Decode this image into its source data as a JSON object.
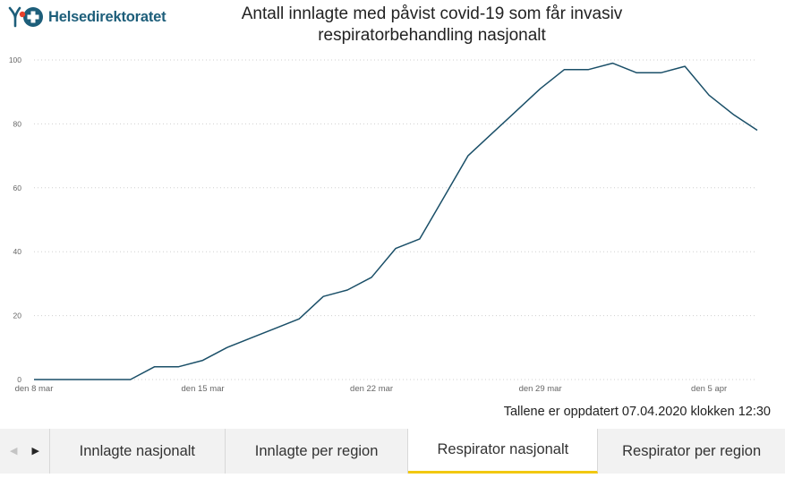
{
  "header": {
    "logo_text": "Helsedirektoratet",
    "title_line1": "Antall innlagte med påvist covid-19 som får invasiv",
    "title_line2": "respiratorbehandling nasjonalt"
  },
  "chart_data": {
    "type": "line",
    "title": "Antall innlagte med påvist covid-19 som får invasiv respiratorbehandling nasjonalt",
    "xlabel": "",
    "ylabel": "",
    "x": [
      "2020-03-08",
      "2020-03-09",
      "2020-03-10",
      "2020-03-11",
      "2020-03-12",
      "2020-03-13",
      "2020-03-14",
      "2020-03-15",
      "2020-03-16",
      "2020-03-17",
      "2020-03-18",
      "2020-03-19",
      "2020-03-20",
      "2020-03-21",
      "2020-03-22",
      "2020-03-23",
      "2020-03-24",
      "2020-03-25",
      "2020-03-26",
      "2020-03-27",
      "2020-03-28",
      "2020-03-29",
      "2020-03-30",
      "2020-03-31",
      "2020-04-01",
      "2020-04-02",
      "2020-04-03",
      "2020-04-04",
      "2020-04-05",
      "2020-04-06",
      "2020-04-07"
    ],
    "series": [
      {
        "values": [
          0,
          0,
          0,
          0,
          0,
          4,
          4,
          6,
          10,
          13,
          16,
          19,
          26,
          28,
          32,
          41,
          44,
          57,
          70,
          77,
          84,
          91,
          97,
          97,
          99,
          96,
          96,
          98,
          89,
          83,
          78
        ]
      }
    ],
    "ylim": [
      0,
      100
    ],
    "y_ticks": [
      0,
      20,
      40,
      60,
      80,
      100
    ],
    "x_ticks": [
      {
        "label": "den 8 mar",
        "index": 0
      },
      {
        "label": "den 15 mar",
        "index": 7
      },
      {
        "label": "den 22 mar",
        "index": 14
      },
      {
        "label": "den 29 mar",
        "index": 21
      },
      {
        "label": "den 5 apr",
        "index": 28
      }
    ],
    "grid": "horizontal dotted",
    "line_color": "#1a4f68"
  },
  "footnote": "Tallene er oppdatert 07.04.2020 klokken 12:30",
  "tabs": [
    {
      "label": "Innlagte nasjonalt"
    },
    {
      "label": "Innlagte per region"
    },
    {
      "label": "Respirator nasjonalt"
    },
    {
      "label": "Respirator per region"
    }
  ],
  "colors": {
    "accent": "#f2c811",
    "logo": "#1d5e7a"
  }
}
